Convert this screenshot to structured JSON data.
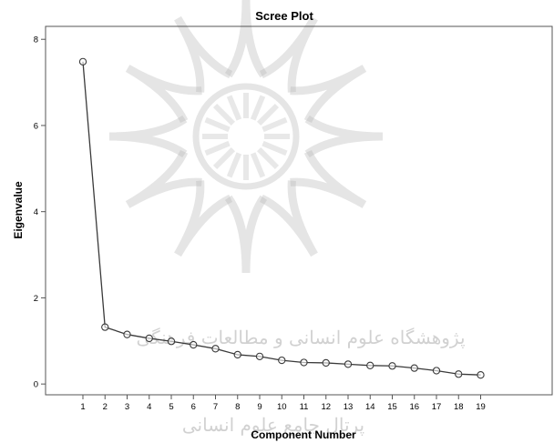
{
  "chart_data": {
    "type": "line",
    "title": "Scree Plot",
    "xlabel": "Component Number",
    "ylabel": "Eigenvalue",
    "x": [
      1,
      2,
      3,
      4,
      5,
      6,
      7,
      8,
      9,
      10,
      11,
      12,
      13,
      14,
      15,
      16,
      17,
      18,
      19
    ],
    "series": [
      {
        "values": [
          7.48,
          1.32,
          1.15,
          1.06,
          0.99,
          0.91,
          0.82,
          0.68,
          0.64,
          0.55,
          0.5,
          0.49,
          0.46,
          0.43,
          0.42,
          0.37,
          0.31,
          0.23,
          0.21
        ]
      }
    ],
    "xticks": [
      "1",
      "2",
      "3",
      "4",
      "5",
      "6",
      "7",
      "8",
      "9",
      "10",
      "11",
      "12",
      "13",
      "14",
      "15",
      "16",
      "17",
      "18",
      "19"
    ],
    "yticks": [
      "0",
      "2",
      "4",
      "6",
      "8"
    ],
    "ylim": [
      -0.25,
      8.3
    ],
    "grid": false,
    "marker": "open-circle",
    "colors": {
      "line": "#3a3a3a",
      "marker": "#3a3a3a",
      "background": "#ffffff",
      "watermark": "#b4b4b4"
    }
  },
  "watermark": {
    "line1": "پژوهشگاه علوم انسانی و مطالعات فرهنگی",
    "line2": "پرتال جامع علوم انسانی"
  }
}
